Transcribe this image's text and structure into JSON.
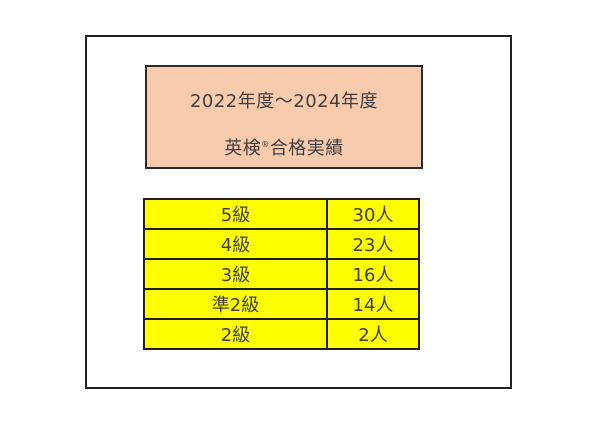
{
  "header": {
    "line1": "2022年度～2024年度",
    "line2_prefix": "英検",
    "line2_reg": "®",
    "line2_suffix": "合格実績"
  },
  "table": {
    "rows": [
      {
        "grade": "5級",
        "count": "30人"
      },
      {
        "grade": "4級",
        "count": "23人"
      },
      {
        "grade": "3級",
        "count": "16人"
      },
      {
        "grade": "準2級",
        "count": "14人"
      },
      {
        "grade": "2級",
        "count": "2人"
      }
    ]
  },
  "colors": {
    "header_bg": "#F8CBAD",
    "table_bg": "#FFFF00",
    "border_color": "#1F1F1F",
    "text_color": "#3F3F3F"
  },
  "chart_data": {
    "type": "table",
    "title": "2022年度～2024年度 英検®合格実績",
    "categories": [
      "5級",
      "4級",
      "3級",
      "準2級",
      "2級"
    ],
    "values": [
      30,
      23,
      16,
      14,
      2
    ],
    "unit": "人",
    "rows": [
      [
        "5級",
        "30人"
      ],
      [
        "4級",
        "23人"
      ],
      [
        "3級",
        "16人"
      ],
      [
        "準2級",
        "14人"
      ],
      [
        "2級",
        "2人"
      ]
    ],
    "layout": {
      "legend": "none",
      "grid": "table-borders"
    }
  }
}
